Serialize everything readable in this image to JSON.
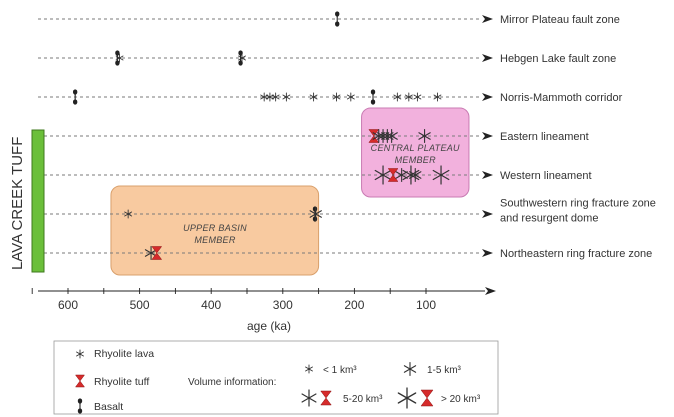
{
  "chart_data": {
    "type": "scatter",
    "title": "",
    "xlabel": "age (ka)",
    "ylabel": "",
    "x_reversed": true,
    "xlim": [
      650,
      80
    ],
    "xticks": [
      600,
      500,
      400,
      300,
      200,
      100
    ],
    "vertical_label": "LAVA CREEK TUFF",
    "rows": [
      {
        "name": "Mirror Plateau fault zone",
        "lines": [
          "Mirror Plateau fault zone"
        ],
        "points": [
          {
            "x": 224,
            "kind": "basalt"
          }
        ]
      },
      {
        "name": "Hebgen Lake fault zone",
        "lines": [
          "Hebgen Lake fault zone"
        ],
        "points": [
          {
            "x": 531,
            "kind": "basalt"
          },
          {
            "x": 528,
            "kind": "lava_small"
          },
          {
            "x": 359,
            "kind": "basalt"
          },
          {
            "x": 357,
            "kind": "lava_small"
          }
        ]
      },
      {
        "name": "Norris-Mammoth corridor",
        "lines": [
          "Norris-Mammoth corridor"
        ],
        "points": [
          {
            "x": 590,
            "kind": "basalt"
          },
          {
            "x": 326,
            "kind": "lava_small"
          },
          {
            "x": 318,
            "kind": "lava_small"
          },
          {
            "x": 310,
            "kind": "lava_small"
          },
          {
            "x": 295,
            "kind": "lava_small"
          },
          {
            "x": 257,
            "kind": "lava_small"
          },
          {
            "x": 225,
            "kind": "lava_small"
          },
          {
            "x": 205,
            "kind": "lava_small"
          },
          {
            "x": 174,
            "kind": "basalt"
          },
          {
            "x": 140,
            "kind": "lava_small"
          },
          {
            "x": 124,
            "kind": "lava_small"
          },
          {
            "x": 112,
            "kind": "lava_small"
          },
          {
            "x": 84,
            "kind": "lava_small"
          }
        ]
      },
      {
        "name": "Eastern lineament",
        "lines": [
          "Eastern lineament"
        ],
        "points": [
          {
            "x": 173,
            "kind": "tuff"
          },
          {
            "x": 166,
            "kind": "lava_medium"
          },
          {
            "x": 160,
            "kind": "lava_medium"
          },
          {
            "x": 154,
            "kind": "lava_medium"
          },
          {
            "x": 148,
            "kind": "lava_medium"
          },
          {
            "x": 102,
            "kind": "lava_medium"
          }
        ]
      },
      {
        "name": "Western lineament",
        "lines": [
          "Western lineament"
        ],
        "points": [
          {
            "x": 160,
            "kind": "lava_large"
          },
          {
            "x": 146,
            "kind": "tuff"
          },
          {
            "x": 134,
            "kind": "lava_medium"
          },
          {
            "x": 121,
            "kind": "lava_large"
          },
          {
            "x": 115,
            "kind": "lava_medium"
          },
          {
            "x": 79,
            "kind": "lava_large"
          }
        ]
      },
      {
        "name": "Southwestern ring fracture zone and resurgent dome",
        "lines": [
          "Southwestern ring fracture zone",
          "and resurgent dome"
        ],
        "points": [
          {
            "x": 516,
            "kind": "lava_small"
          },
          {
            "x": 255,
            "kind": "basalt"
          },
          {
            "x": 254,
            "kind": "lava_medium"
          }
        ]
      },
      {
        "name": "Northeastern ring fracture zone",
        "lines": [
          "Northeastern ring fracture zone"
        ],
        "points": [
          {
            "x": 484,
            "kind": "lava_medium"
          },
          {
            "x": 476,
            "kind": "tuff"
          }
        ]
      }
    ],
    "members": [
      {
        "lines": [
          "CENTRAL PLATEAU",
          "MEMBER"
        ],
        "color": "#f2b1dd",
        "stroke": "#c97bb3",
        "x_range": [
          190,
          40
        ],
        "rows": [
          3,
          4
        ]
      },
      {
        "lines": [
          "UPPER BASIN",
          "MEMBER"
        ],
        "color": "#f8caa0",
        "stroke": "#d9a06c",
        "x_range": [
          540,
          250
        ],
        "rows": [
          5,
          6
        ]
      }
    ],
    "lava_creek_bar": {
      "color": "#6bbf3a",
      "stroke": "#3f7a1e"
    }
  },
  "legend": {
    "rhyolite_lava": "Rhyolite lava",
    "rhyolite_tuff": "Rhyolite tuff",
    "basalt": "Basalt",
    "volume_title": "Volume information:",
    "vol_1": "< 1 km³",
    "vol_2": "1-5 km³",
    "vol_3": "5-20 km³",
    "vol_4": "> 20 km³"
  },
  "colors": {
    "tuff": "#d62b2b",
    "basalt": "#222222",
    "lava": "#333333",
    "guide": "#7a7a7a"
  }
}
